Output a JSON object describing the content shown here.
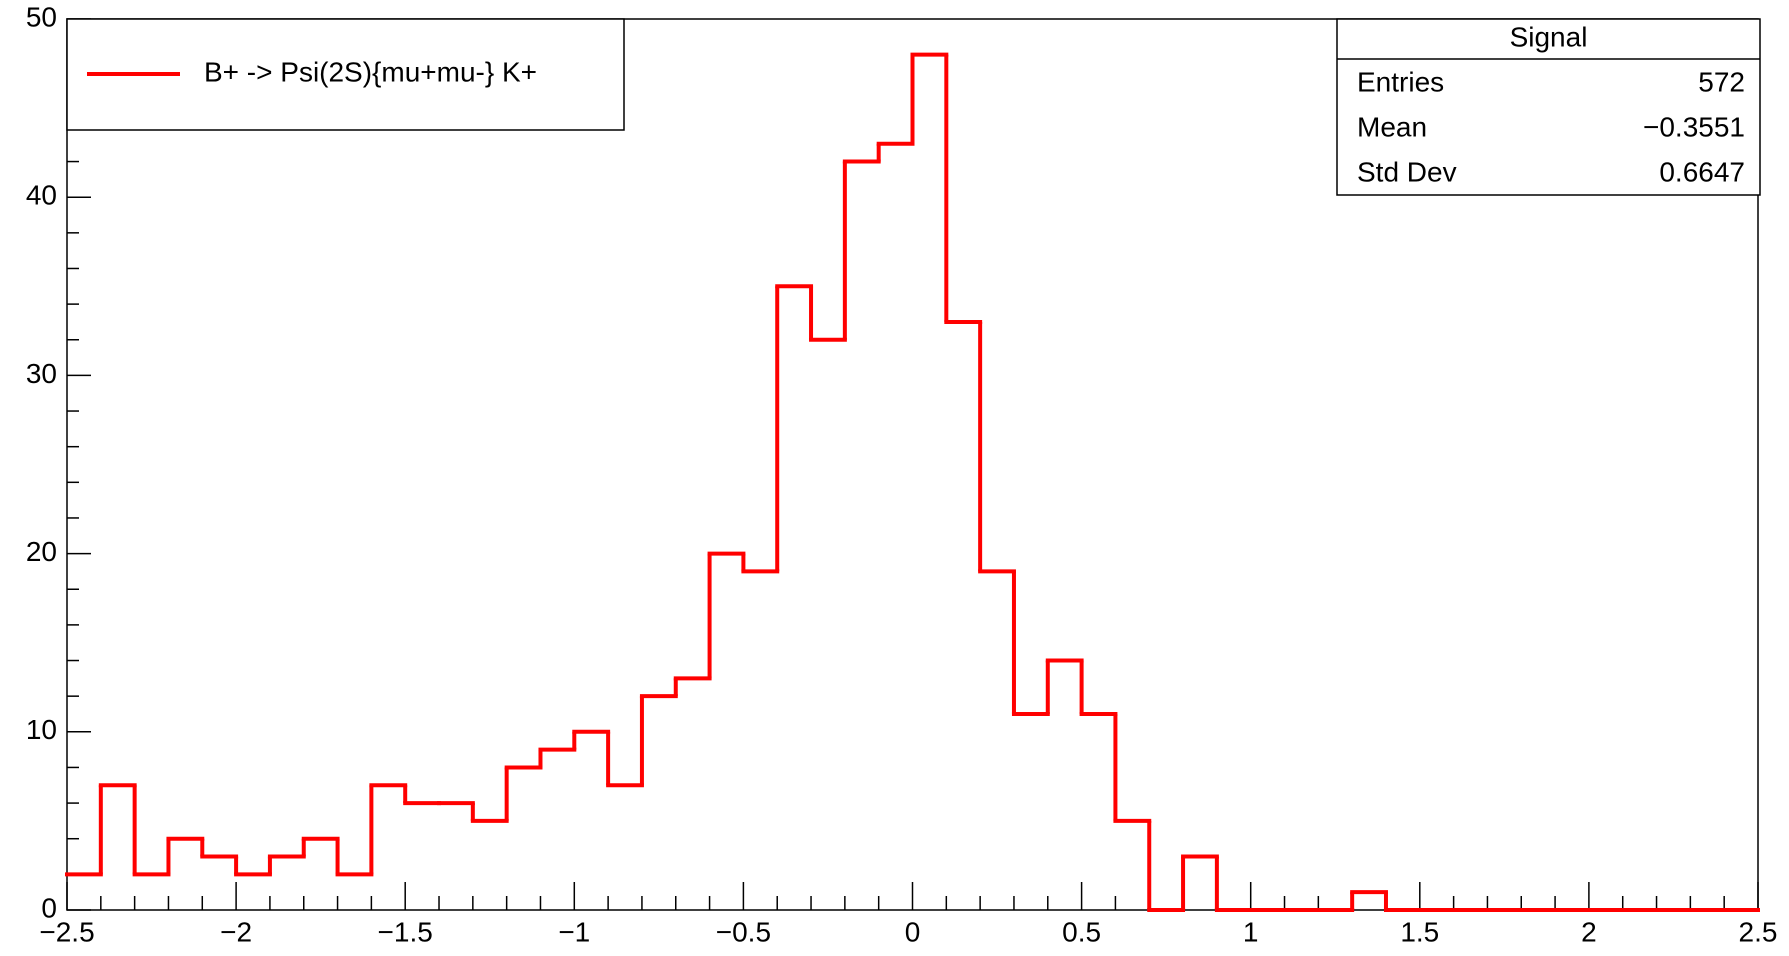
{
  "chart_data": {
    "type": "histogram",
    "bins": [
      -2.5,
      -2.4,
      -2.3,
      -2.2,
      -2.1,
      -2.0,
      -1.9,
      -1.8,
      -1.7,
      -1.6,
      -1.5,
      -1.4,
      -1.3,
      -1.2,
      -1.1,
      -1.0,
      -0.9,
      -0.8,
      -0.7,
      -0.6,
      -0.5,
      -0.4,
      -0.3,
      -0.2,
      -0.1,
      0.0,
      0.1,
      0.2,
      0.3,
      0.4,
      0.5,
      0.6,
      0.7,
      0.8,
      0.9,
      1.0,
      1.1,
      1.2,
      1.3,
      1.4,
      1.5,
      1.6,
      1.7,
      1.8,
      1.9,
      2.0,
      2.1,
      2.2,
      2.3,
      2.4,
      2.5
    ],
    "series": [
      {
        "name": "B+ -> Psi(2S){mu+mu-} K+",
        "color": "#ff0000",
        "values": [
          2,
          7,
          2,
          4,
          3,
          2,
          3,
          4,
          2,
          7,
          6,
          6,
          5,
          8,
          9,
          10,
          7,
          12,
          13,
          20,
          19,
          35,
          32,
          42,
          43,
          48,
          33,
          19,
          11,
          14,
          11,
          5,
          0,
          3,
          0,
          0,
          0,
          0,
          1,
          0,
          0,
          0,
          0,
          0,
          0,
          0,
          0,
          0,
          0,
          0
        ]
      }
    ],
    "xlim": [
      -2.5,
      2.5
    ],
    "xticks": [
      {
        "value": -2.5,
        "label": "−2.5"
      },
      {
        "value": -2,
        "label": "−2"
      },
      {
        "value": -1.5,
        "label": "−1.5"
      },
      {
        "value": -1,
        "label": "−1"
      },
      {
        "value": -0.5,
        "label": "−0.5"
      },
      0,
      0.5,
      1,
      1.5,
      2,
      2.5
    ],
    "ylim": [
      0,
      50
    ],
    "yticks": [
      0,
      10,
      20,
      30,
      40,
      50
    ],
    "legend": "top-left",
    "stats": {
      "title": "Signal",
      "rows": [
        [
          "Entries",
          "572"
        ],
        [
          "Mean",
          "−0.3551"
        ],
        [
          "Std Dev",
          "0.6647"
        ]
      ]
    }
  }
}
